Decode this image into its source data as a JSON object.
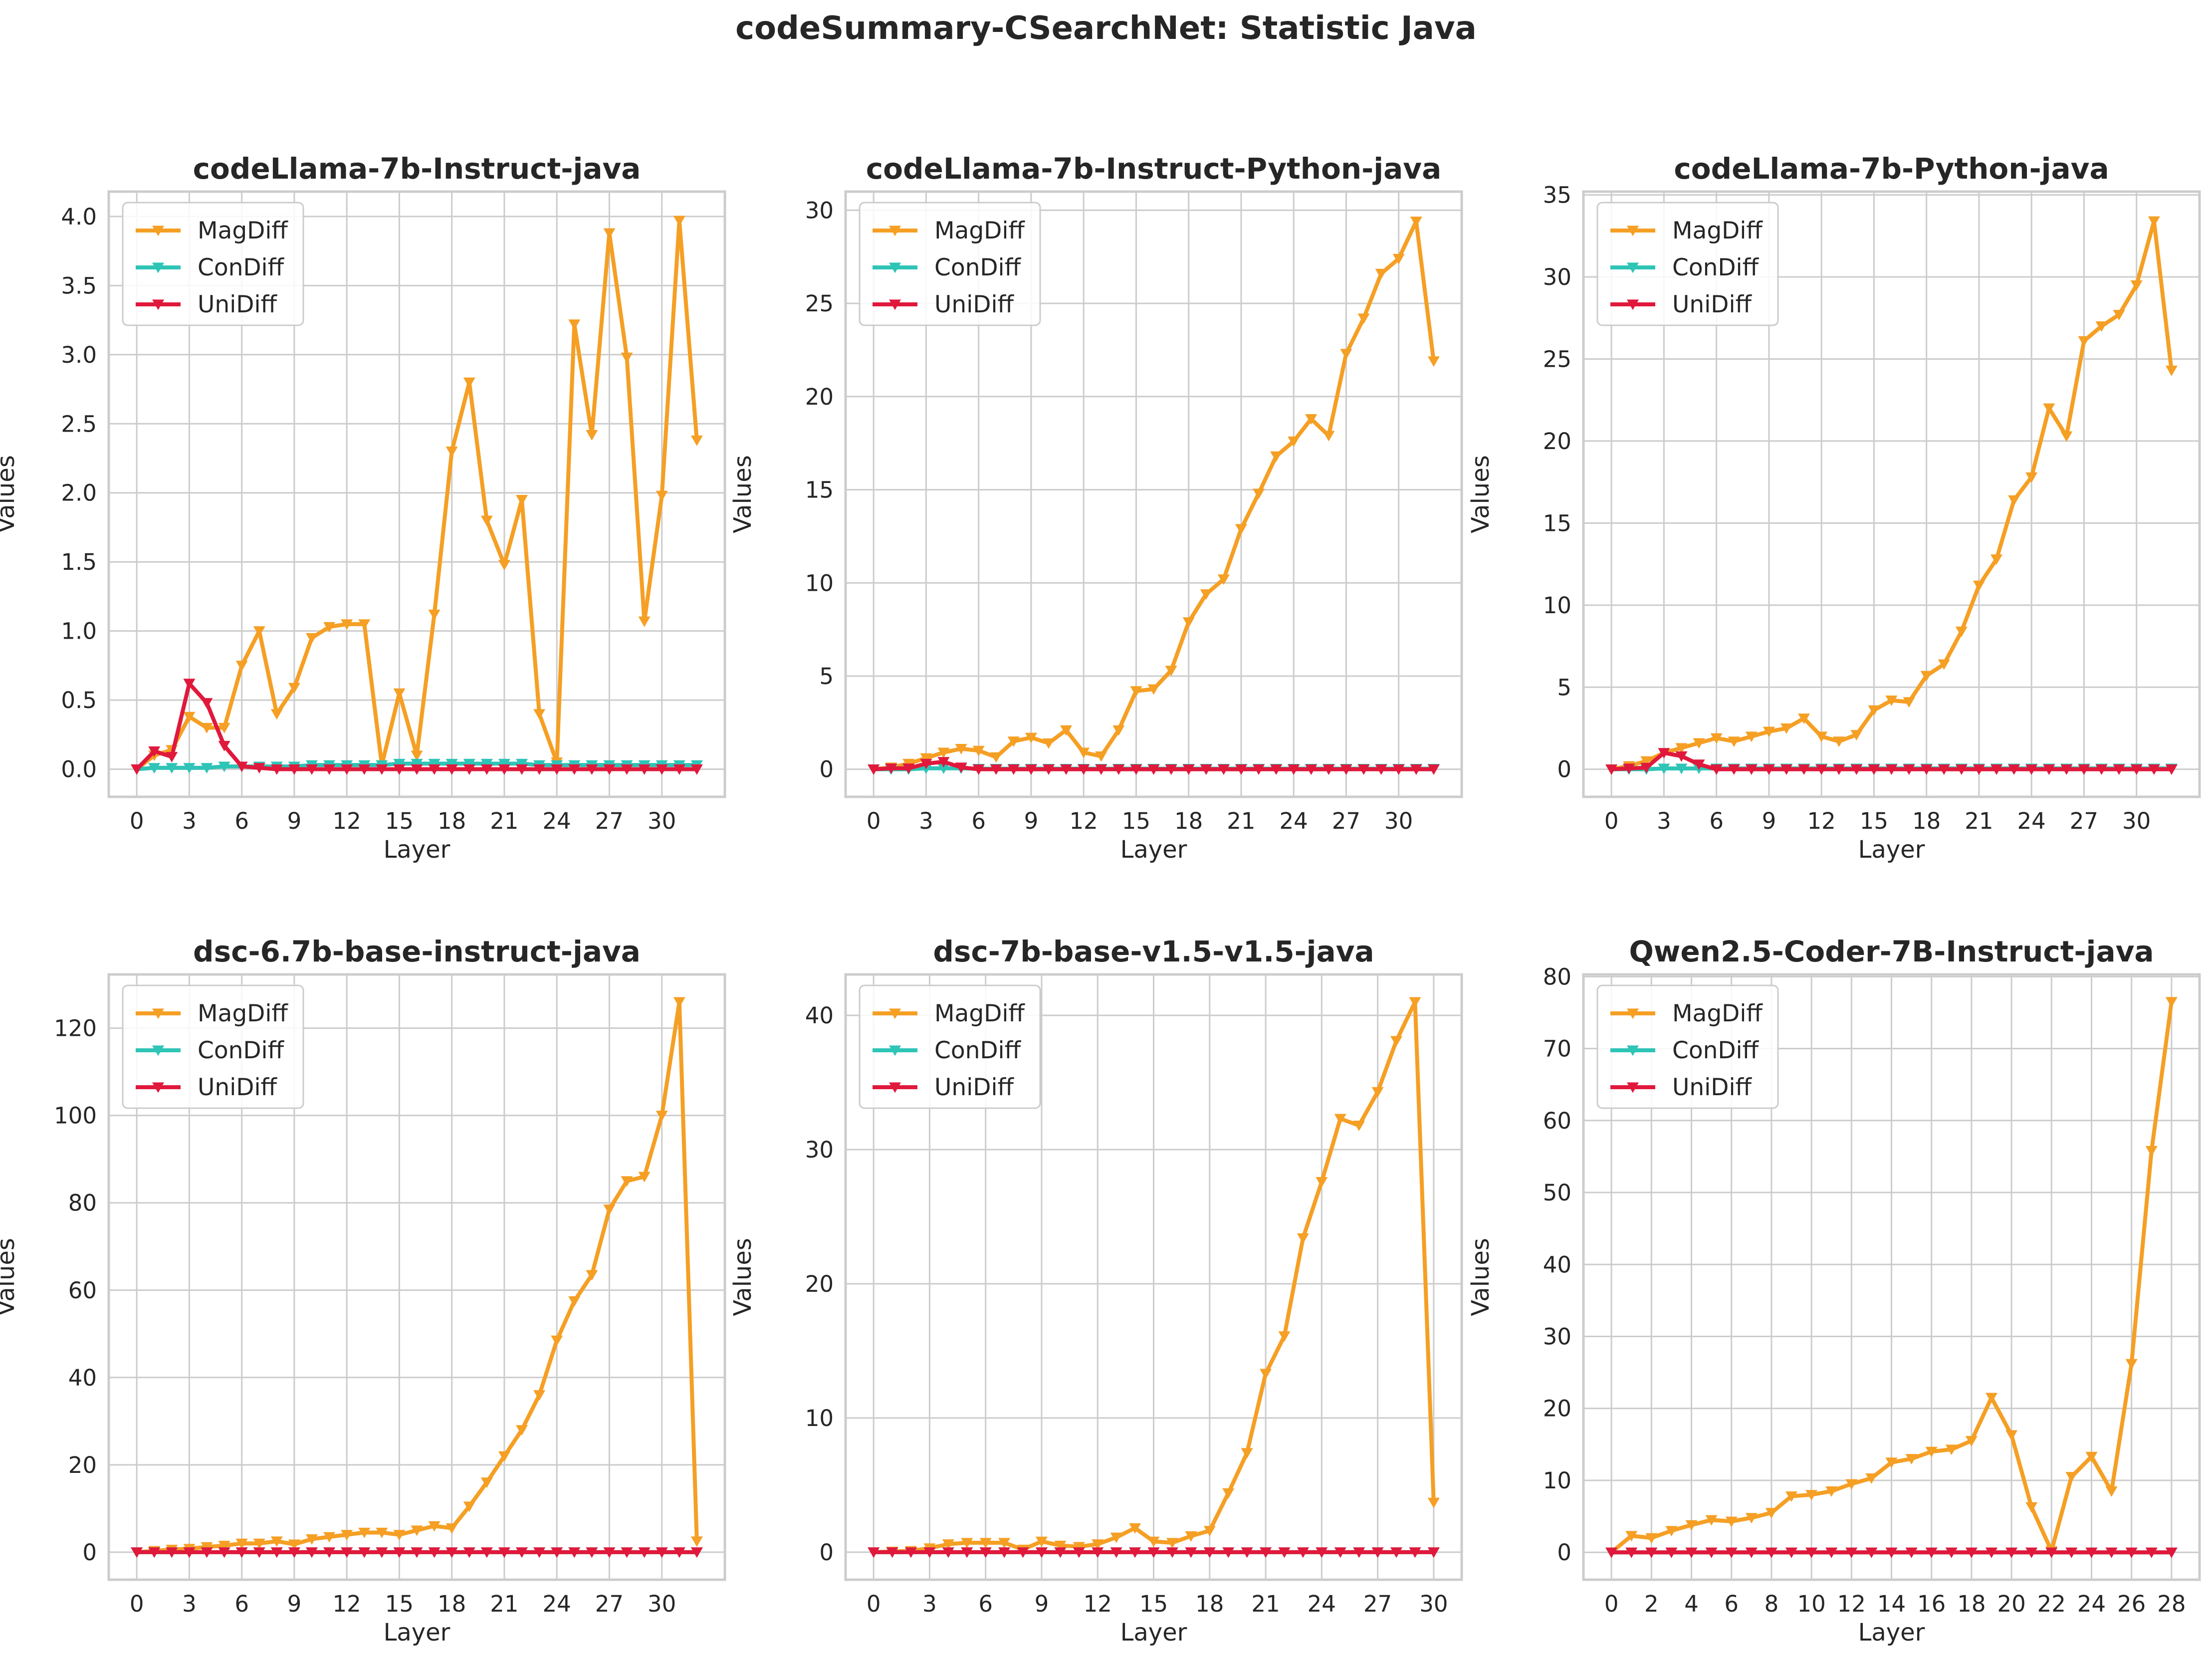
{
  "figure": {
    "title": "codeSummary-CSearchNet: Statistic Java",
    "colors": {
      "MagDiff": "#f59f24",
      "ConDiff": "#2ec4b6",
      "UniDiff": "#e0193c",
      "grid": "#cccccc",
      "frame": "#cccccc"
    }
  },
  "chart_data": [
    {
      "type": "line",
      "title": "codeLlama-7b-Instruct-java",
      "xlabel": "Layer",
      "ylabel": "Values",
      "xlim": [
        -1.6,
        33.6
      ],
      "ylim": [
        -0.2,
        4.18
      ],
      "xticks": [
        0,
        3,
        6,
        9,
        12,
        15,
        18,
        21,
        24,
        27,
        30
      ],
      "yticks": [
        0.0,
        0.5,
        1.0,
        1.5,
        2.0,
        2.5,
        3.0,
        3.5,
        4.0
      ],
      "ytick_labels": [
        "0.0",
        "0.5",
        "1.0",
        "1.5",
        "2.0",
        "2.5",
        "3.0",
        "3.5",
        "4.0"
      ],
      "legend": "upper-left",
      "grid": true,
      "x": [
        0,
        1,
        2,
        3,
        4,
        5,
        6,
        7,
        8,
        9,
        10,
        11,
        12,
        13,
        14,
        15,
        16,
        17,
        18,
        19,
        20,
        21,
        22,
        23,
        24,
        25,
        26,
        27,
        28,
        29,
        30,
        31,
        32
      ],
      "series": [
        {
          "name": "MagDiff",
          "values": [
            0.0,
            0.1,
            0.14,
            0.38,
            0.3,
            0.3,
            0.75,
            1.0,
            0.4,
            0.59,
            0.95,
            1.03,
            1.05,
            1.05,
            0.03,
            0.55,
            0.1,
            1.12,
            2.3,
            2.8,
            1.8,
            1.48,
            1.95,
            0.4,
            0.05,
            3.22,
            2.42,
            3.88,
            2.98,
            1.07,
            1.98,
            3.97,
            2.38
          ]
        },
        {
          "name": "ConDiff",
          "values": [
            0.0,
            0.01,
            0.01,
            0.01,
            0.01,
            0.02,
            0.02,
            0.02,
            0.02,
            0.02,
            0.03,
            0.03,
            0.03,
            0.03,
            0.03,
            0.04,
            0.04,
            0.04,
            0.04,
            0.04,
            0.04,
            0.04,
            0.04,
            0.03,
            0.03,
            0.03,
            0.03,
            0.03,
            0.03,
            0.03,
            0.03,
            0.03,
            0.03
          ]
        },
        {
          "name": "UniDiff",
          "values": [
            0.0,
            0.13,
            0.09,
            0.62,
            0.48,
            0.17,
            0.02,
            0.01,
            0.0,
            0.0,
            0.0,
            0.0,
            0.0,
            0.0,
            0.0,
            0.0,
            0.0,
            0.0,
            0.0,
            0.0,
            0.0,
            0.0,
            0.0,
            0.0,
            0.0,
            0.0,
            0.0,
            0.0,
            0.0,
            0.0,
            0.0,
            0.0,
            0.0
          ]
        }
      ]
    },
    {
      "type": "line",
      "title": "codeLlama-7b-Instruct-Python-java",
      "xlabel": "Layer",
      "ylabel": "Values",
      "xlim": [
        -1.6,
        33.6
      ],
      "ylim": [
        -1.48,
        31.0
      ],
      "xticks": [
        0,
        3,
        6,
        9,
        12,
        15,
        18,
        21,
        24,
        27,
        30
      ],
      "yticks": [
        0,
        5,
        10,
        15,
        20,
        25,
        30
      ],
      "ytick_labels": [
        "0",
        "5",
        "10",
        "15",
        "20",
        "25",
        "30"
      ],
      "legend": "upper-left",
      "grid": true,
      "x": [
        0,
        1,
        2,
        3,
        4,
        5,
        6,
        7,
        8,
        9,
        10,
        11,
        12,
        13,
        14,
        15,
        16,
        17,
        18,
        19,
        20,
        21,
        22,
        23,
        24,
        25,
        26,
        27,
        28,
        29,
        30,
        31,
        32
      ],
      "series": [
        {
          "name": "MagDiff",
          "values": [
            0.0,
            0.1,
            0.3,
            0.6,
            0.9,
            1.1,
            1.0,
            0.65,
            1.5,
            1.7,
            1.4,
            2.1,
            0.9,
            0.7,
            2.1,
            4.2,
            4.3,
            5.3,
            7.9,
            9.4,
            10.2,
            12.9,
            14.8,
            16.8,
            17.6,
            18.8,
            17.9,
            22.3,
            24.2,
            26.6,
            27.4,
            29.4,
            21.9
          ]
        },
        {
          "name": "ConDiff",
          "values": [
            0.0,
            0.0,
            0.0,
            0.05,
            0.05,
            0.05,
            0.03,
            0.03,
            0.03,
            0.03,
            0.03,
            0.03,
            0.03,
            0.03,
            0.03,
            0.03,
            0.03,
            0.03,
            0.03,
            0.03,
            0.03,
            0.03,
            0.03,
            0.03,
            0.03,
            0.03,
            0.03,
            0.03,
            0.03,
            0.03,
            0.03,
            0.03,
            0.03
          ]
        },
        {
          "name": "UniDiff",
          "values": [
            0.0,
            0.05,
            0.05,
            0.3,
            0.4,
            0.1,
            0.0,
            0.0,
            0.0,
            0.0,
            0.0,
            0.0,
            0.0,
            0.0,
            0.0,
            0.0,
            0.0,
            0.0,
            0.0,
            0.0,
            0.0,
            0.0,
            0.0,
            0.0,
            0.0,
            0.0,
            0.0,
            0.0,
            0.0,
            0.0,
            0.0,
            0.0,
            0.0
          ]
        }
      ]
    },
    {
      "type": "line",
      "title": "codeLlama-7b-Python-java",
      "xlabel": "Layer",
      "ylabel": "Values",
      "xlim": [
        -1.6,
        33.6
      ],
      "ylim": [
        -1.68,
        35.2
      ],
      "xticks": [
        0,
        3,
        6,
        9,
        12,
        15,
        18,
        21,
        24,
        27,
        30
      ],
      "yticks": [
        0,
        5,
        10,
        15,
        20,
        25,
        30,
        35
      ],
      "ytick_labels": [
        "0",
        "5",
        "10",
        "15",
        "20",
        "25",
        "30",
        "35"
      ],
      "legend": "upper-left",
      "grid": true,
      "x": [
        0,
        1,
        2,
        3,
        4,
        5,
        6,
        7,
        8,
        9,
        10,
        11,
        12,
        13,
        14,
        15,
        16,
        17,
        18,
        19,
        20,
        21,
        22,
        23,
        24,
        25,
        26,
        27,
        28,
        29,
        30,
        31,
        32
      ],
      "series": [
        {
          "name": "MagDiff",
          "values": [
            0.0,
            0.2,
            0.5,
            1.0,
            1.3,
            1.6,
            1.9,
            1.7,
            2.0,
            2.3,
            2.5,
            3.1,
            2.0,
            1.7,
            2.1,
            3.6,
            4.2,
            4.1,
            5.7,
            6.4,
            8.4,
            11.2,
            12.8,
            16.4,
            17.8,
            22.0,
            20.3,
            26.1,
            27.0,
            27.7,
            29.5,
            33.4,
            24.3
          ]
        },
        {
          "name": "ConDiff",
          "values": [
            0.0,
            0.0,
            0.0,
            0.05,
            0.05,
            0.05,
            0.05,
            0.05,
            0.05,
            0.05,
            0.05,
            0.05,
            0.05,
            0.05,
            0.05,
            0.05,
            0.05,
            0.05,
            0.05,
            0.05,
            0.05,
            0.05,
            0.05,
            0.05,
            0.05,
            0.05,
            0.05,
            0.05,
            0.05,
            0.05,
            0.05,
            0.05,
            0.05
          ]
        },
        {
          "name": "UniDiff",
          "values": [
            0.0,
            0.05,
            0.1,
            1.0,
            0.8,
            0.3,
            0.0,
            0.0,
            0.0,
            0.0,
            0.0,
            0.0,
            0.0,
            0.0,
            0.0,
            0.0,
            0.0,
            0.0,
            0.0,
            0.0,
            0.0,
            0.0,
            0.0,
            0.0,
            0.0,
            0.0,
            0.0,
            0.0,
            0.0,
            0.0,
            0.0,
            0.0,
            0.0
          ]
        }
      ]
    },
    {
      "type": "line",
      "title": "dsc-6.7b-base-instruct-java",
      "xlabel": "Layer",
      "ylabel": "Values",
      "xlim": [
        -1.6,
        33.6
      ],
      "ylim": [
        -6.3,
        132.3
      ],
      "xticks": [
        0,
        3,
        6,
        9,
        12,
        15,
        18,
        21,
        24,
        27,
        30
      ],
      "yticks": [
        0,
        20,
        40,
        60,
        80,
        100,
        120
      ],
      "ytick_labels": [
        "0",
        "20",
        "40",
        "60",
        "80",
        "100",
        "120"
      ],
      "legend": "upper-left",
      "grid": true,
      "x": [
        0,
        1,
        2,
        3,
        4,
        5,
        6,
        7,
        8,
        9,
        10,
        11,
        12,
        13,
        14,
        15,
        16,
        17,
        18,
        19,
        20,
        21,
        22,
        23,
        24,
        25,
        26,
        27,
        28,
        29,
        30,
        31,
        32
      ],
      "series": [
        {
          "name": "MagDiff",
          "values": [
            0.0,
            0.3,
            0.6,
            0.8,
            1.2,
            1.5,
            2.0,
            2.0,
            2.5,
            1.8,
            3.0,
            3.5,
            4.0,
            4.5,
            4.5,
            4.0,
            5.0,
            6.0,
            5.5,
            10.5,
            16.0,
            22.0,
            28.0,
            36.0,
            48.5,
            57.5,
            63.5,
            78.5,
            85.0,
            86.0,
            100.0,
            126.0,
            2.5
          ]
        },
        {
          "name": "ConDiff",
          "values": [
            0.0,
            0.0,
            0.0,
            0.0,
            0.0,
            0.0,
            0.0,
            0.0,
            0.0,
            0.0,
            0.0,
            0.0,
            0.0,
            0.0,
            0.0,
            0.0,
            0.0,
            0.0,
            0.0,
            0.0,
            0.0,
            0.0,
            0.0,
            0.0,
            0.0,
            0.0,
            0.0,
            0.0,
            0.0,
            0.0,
            0.0,
            0.0,
            0.0
          ]
        },
        {
          "name": "UniDiff",
          "values": [
            0.0,
            0.0,
            0.0,
            0.0,
            0.0,
            0.0,
            0.0,
            0.0,
            0.0,
            0.0,
            0.0,
            0.0,
            0.0,
            0.0,
            0.0,
            0.0,
            0.0,
            0.0,
            0.0,
            0.0,
            0.0,
            0.0,
            0.0,
            0.0,
            0.0,
            0.0,
            0.0,
            0.0,
            0.0,
            0.0,
            0.0,
            0.0,
            0.0
          ]
        }
      ]
    },
    {
      "type": "line",
      "title": "dsc-7b-base-v1.5-v1.5-java",
      "xlabel": "Layer",
      "ylabel": "Values",
      "xlim": [
        -1.5,
        31.5
      ],
      "ylim": [
        -2.05,
        43.05
      ],
      "xticks": [
        0,
        3,
        6,
        9,
        12,
        15,
        18,
        21,
        24,
        27,
        30
      ],
      "yticks": [
        0,
        10,
        20,
        30,
        40
      ],
      "ytick_labels": [
        "0",
        "10",
        "20",
        "30",
        "40"
      ],
      "legend": "upper-left",
      "grid": true,
      "x": [
        0,
        1,
        2,
        3,
        4,
        5,
        6,
        7,
        8,
        9,
        10,
        11,
        12,
        13,
        14,
        15,
        16,
        17,
        18,
        19,
        20,
        21,
        22,
        23,
        24,
        25,
        26,
        27,
        28,
        29,
        30
      ],
      "series": [
        {
          "name": "MagDiff",
          "values": [
            0.0,
            0.05,
            0.1,
            0.3,
            0.6,
            0.7,
            0.7,
            0.7,
            0.2,
            0.8,
            0.5,
            0.4,
            0.6,
            1.1,
            1.8,
            0.8,
            0.7,
            1.2,
            1.6,
            4.4,
            7.4,
            13.3,
            16.1,
            23.4,
            27.6,
            32.3,
            31.8,
            34.3,
            38.1,
            41.0,
            3.7
          ]
        },
        {
          "name": "ConDiff",
          "values": [
            0.0,
            0.0,
            0.0,
            0.0,
            0.0,
            0.0,
            0.0,
            0.0,
            0.0,
            0.0,
            0.0,
            0.0,
            0.0,
            0.0,
            0.0,
            0.0,
            0.0,
            0.0,
            0.0,
            0.0,
            0.0,
            0.0,
            0.0,
            0.0,
            0.0,
            0.0,
            0.0,
            0.0,
            0.0,
            0.0,
            0.0
          ]
        },
        {
          "name": "UniDiff",
          "values": [
            0.0,
            0.0,
            0.0,
            0.0,
            0.0,
            0.0,
            0.0,
            0.0,
            0.0,
            0.0,
            0.0,
            0.0,
            0.0,
            0.0,
            0.0,
            0.0,
            0.0,
            0.0,
            0.0,
            0.0,
            0.0,
            0.0,
            0.0,
            0.0,
            0.0,
            0.0,
            0.0,
            0.0,
            0.0,
            0.0,
            0.0
          ]
        }
      ]
    },
    {
      "type": "line",
      "title": "Qwen2.5-Coder-7B-Instruct-java",
      "xlabel": "Layer",
      "ylabel": "Values",
      "xlim": [
        -1.4,
        29.4
      ],
      "ylim": [
        -3.8,
        80.3
      ],
      "xticks": [
        0,
        2,
        4,
        6,
        8,
        10,
        12,
        14,
        16,
        18,
        20,
        22,
        24,
        26,
        28
      ],
      "yticks": [
        0,
        10,
        20,
        30,
        40,
        50,
        60,
        70,
        80
      ],
      "ytick_labels": [
        "0",
        "10",
        "20",
        "30",
        "40",
        "50",
        "60",
        "70",
        "80"
      ],
      "legend": "upper-left",
      "grid": true,
      "x": [
        0,
        1,
        2,
        3,
        4,
        5,
        6,
        7,
        8,
        9,
        10,
        11,
        12,
        13,
        14,
        15,
        16,
        17,
        18,
        19,
        20,
        21,
        22,
        23,
        24,
        25,
        26,
        27,
        28
      ],
      "series": [
        {
          "name": "MagDiff",
          "values": [
            0.0,
            2.3,
            2.0,
            3.0,
            3.8,
            4.5,
            4.3,
            4.8,
            5.5,
            7.8,
            8.0,
            8.5,
            9.5,
            10.3,
            12.5,
            13.0,
            14.0,
            14.3,
            15.5,
            21.5,
            16.3,
            6.3,
            0.2,
            10.5,
            13.3,
            8.5,
            26.2,
            55.8,
            76.5
          ]
        },
        {
          "name": "ConDiff",
          "values": [
            0.0,
            0.0,
            0.0,
            0.0,
            0.0,
            0.0,
            0.0,
            0.0,
            0.0,
            0.0,
            0.0,
            0.0,
            0.0,
            0.0,
            0.0,
            0.0,
            0.0,
            0.0,
            0.0,
            0.0,
            0.0,
            0.0,
            0.0,
            0.0,
            0.0,
            0.0,
            0.0,
            0.0,
            0.0
          ]
        },
        {
          "name": "UniDiff",
          "values": [
            0.0,
            0.0,
            0.0,
            0.0,
            0.0,
            0.0,
            0.0,
            0.0,
            0.0,
            0.0,
            0.0,
            0.0,
            0.0,
            0.0,
            0.0,
            0.0,
            0.0,
            0.0,
            0.0,
            0.0,
            0.0,
            0.0,
            0.0,
            0.0,
            0.0,
            0.0,
            0.0,
            0.0,
            0.0
          ]
        }
      ]
    }
  ]
}
